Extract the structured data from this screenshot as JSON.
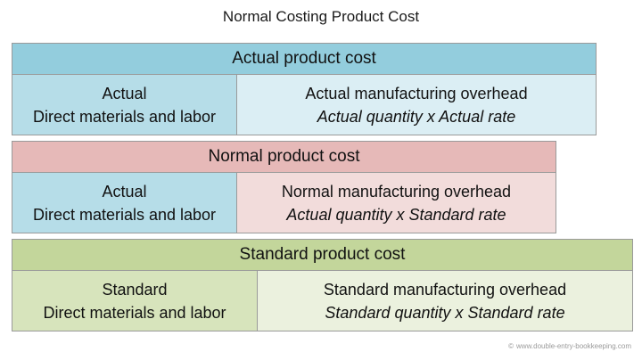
{
  "title": "Normal Costing Product Cost",
  "blocks": [
    {
      "header": "Actual product cost",
      "left": {
        "line1": "Actual",
        "line2": "Direct materials and labor"
      },
      "right": {
        "line1": "Actual manufacturing overhead",
        "line2": "Actual quantity x Actual rate"
      }
    },
    {
      "header": "Normal product cost",
      "left": {
        "line1": "Actual",
        "line2": "Direct materials and labor"
      },
      "right": {
        "line1": "Normal manufacturing overhead",
        "line2": "Actual quantity x Standard rate"
      }
    },
    {
      "header": "Standard product cost",
      "left": {
        "line1": "Standard",
        "line2": "Direct materials and labor"
      },
      "right": {
        "line1": "Standard manufacturing overhead",
        "line2": "Standard quantity x Standard rate"
      }
    }
  ],
  "watermark": {
    "symbol": "©",
    "text": "www.double-entry-bookkeeping.com"
  },
  "colors": {
    "actual_header": "#93cddd",
    "actual_cell": "#b6dde8",
    "actual_overhead": "#dbeef4",
    "normal_header": "#e6b9b8",
    "normal_overhead": "#f2dcdb",
    "standard_header": "#c3d69b",
    "standard_cell": "#d7e4bc",
    "standard_overhead": "#ebf1de"
  }
}
